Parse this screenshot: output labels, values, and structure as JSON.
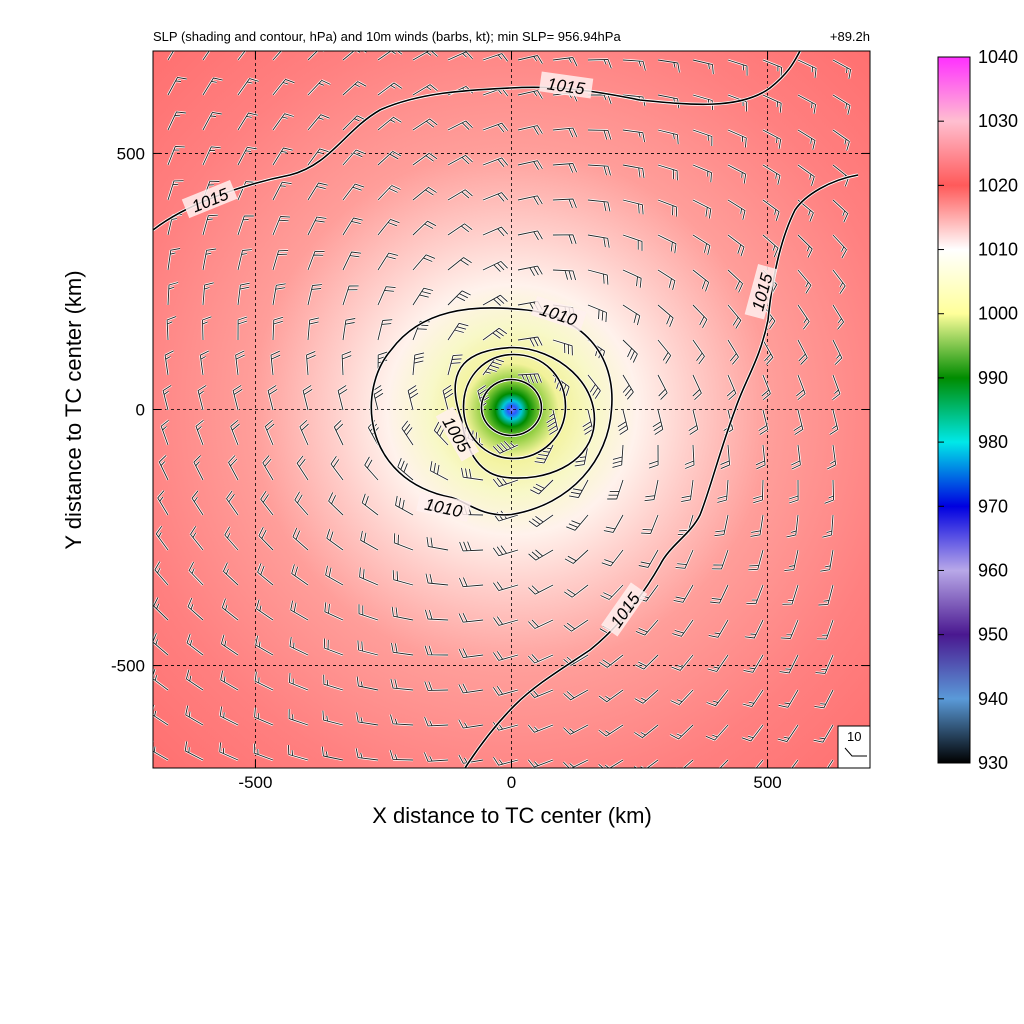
{
  "chart_data": {
    "type": "heatmap",
    "title": "SLP (shading and contour, hPa) and 10m winds (barbs, kt); min SLP= 956.94hPa",
    "time_label": "+89.2h",
    "xlabel": "X distance to TC center (km)",
    "ylabel": "Y distance to TC center (km)",
    "xlim": [
      -700,
      700
    ],
    "ylim": [
      -700,
      700
    ],
    "xticks": [
      -500,
      0,
      500
    ],
    "yticks": [
      -500,
      0,
      500
    ],
    "grid": "dashed at -500, 0, 500 km",
    "min_slp_hpa": 956.94,
    "colorbar": {
      "min": 930,
      "max": 1040,
      "ticks": [
        930,
        940,
        950,
        960,
        970,
        980,
        990,
        1000,
        1010,
        1020,
        1030,
        1040
      ],
      "colors": [
        "#000000",
        "#5a9ad8",
        "#4a1890",
        "#b8a8e8",
        "#0000e0",
        "#00e8e8",
        "#008c00",
        "#ffff9a",
        "#ffffff",
        "#ff5a5a",
        "#ffbfd0",
        "#ff30ff"
      ]
    },
    "contours": [
      {
        "level": 1005,
        "label": "1005"
      },
      {
        "level": 1010,
        "label": "1010"
      },
      {
        "level": 1015,
        "label": "1015"
      }
    ],
    "wind_barb_reference": {
      "label": "10",
      "units": "kt"
    }
  }
}
